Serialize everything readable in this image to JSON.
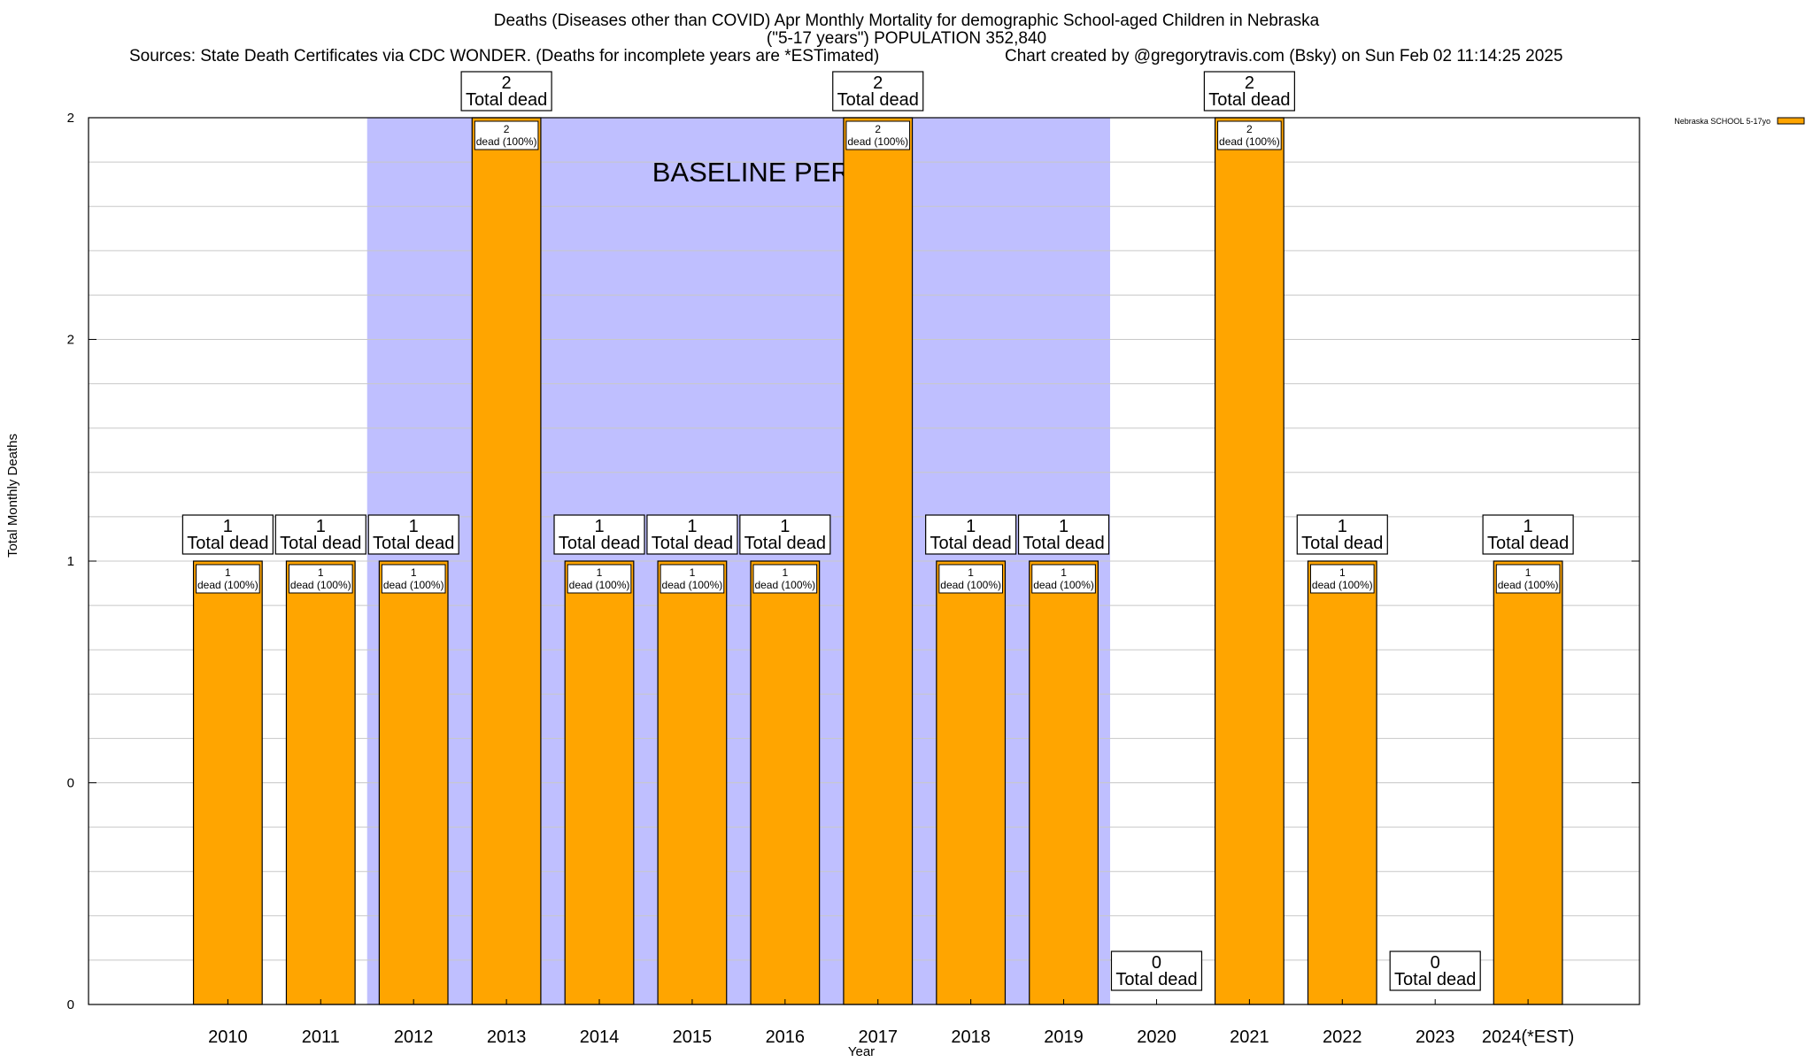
{
  "header": {
    "title_line1": "Deaths (Diseases other than COVID) Apr Monthly Mortality for demographic School-aged Children in Nebraska",
    "title_line2": "(\"5-17 years\") POPULATION 352,840",
    "sources": "Sources: State Death Certificates via CDC WONDER. (Deaths for incomplete years are *ESTimated)",
    "credit": "Chart created by @gregorytravis.com (Bsky) on Sun Feb 02 11:14:25 2025"
  },
  "chart_data": {
    "type": "bar",
    "categories": [
      "2010",
      "2011",
      "2012",
      "2013",
      "2014",
      "2015",
      "2016",
      "2017",
      "2018",
      "2019",
      "2020",
      "2021",
      "2022",
      "2023",
      "2024(*EST)"
    ],
    "series": [
      {
        "name": "Nebraska SCHOOL 5-17yo",
        "values": [
          1,
          1,
          1,
          2,
          1,
          1,
          1,
          2,
          1,
          1,
          0,
          2,
          1,
          0,
          1
        ],
        "color": "#FFA500"
      }
    ],
    "xlabel": "Year",
    "ylabel": "Total Monthly Deaths",
    "ylim": [
      0,
      2
    ],
    "yticks": [
      "0",
      "0",
      "1",
      "2",
      "2"
    ],
    "total_label_suffix": "Total dead",
    "segment_label_suffix": "dead (100%)",
    "baseline_label": "BASELINE PERIOD",
    "baseline_range": [
      "2012",
      "2019"
    ],
    "baseline_color": "#BFBFFF",
    "bar_color": "#FFA500",
    "grid": true,
    "legend_position": "top-right"
  }
}
